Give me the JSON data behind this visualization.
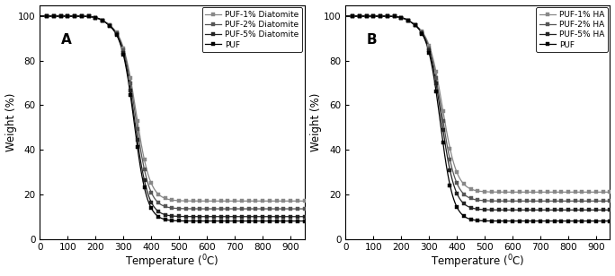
{
  "panel_a": {
    "label": "A",
    "ylabel": "Weight (%)",
    "xlim": [
      0,
      950
    ],
    "ylim": [
      0,
      105
    ],
    "xticks": [
      0,
      100,
      200,
      300,
      400,
      500,
      600,
      700,
      800,
      900
    ],
    "yticks": [
      0,
      20,
      40,
      60,
      80,
      100
    ],
    "series": [
      {
        "label": "PUF-1% Diatomite",
        "color": "#888888",
        "end_val": 17.0,
        "mid": 345,
        "steep": 0.04
      },
      {
        "label": "PUF-2% Diatomite",
        "color": "#555555",
        "end_val": 13.5,
        "mid": 343,
        "steep": 0.041
      },
      {
        "label": "PUF-5% Diatomite",
        "color": "#222222",
        "end_val": 10.0,
        "mid": 340,
        "steep": 0.042
      },
      {
        "label": "PUF",
        "color": "#000000",
        "end_val": 8.0,
        "mid": 338,
        "steep": 0.043
      }
    ]
  },
  "panel_b": {
    "label": "B",
    "ylabel": "Weight (%)",
    "xlim": [
      0,
      950
    ],
    "ylim": [
      0,
      105
    ],
    "xticks": [
      0,
      100,
      200,
      300,
      400,
      500,
      600,
      700,
      800,
      900
    ],
    "yticks": [
      0,
      20,
      40,
      60,
      80,
      100
    ],
    "series": [
      {
        "label": "PUF-1% HA",
        "color": "#888888",
        "end_val": 21.0,
        "mid": 348,
        "steep": 0.039
      },
      {
        "label": "PUF-2% HA",
        "color": "#555555",
        "end_val": 17.0,
        "mid": 345,
        "steep": 0.04
      },
      {
        "label": "PUF-5% HA",
        "color": "#222222",
        "end_val": 13.0,
        "mid": 343,
        "steep": 0.041
      },
      {
        "label": "PUF",
        "color": "#000000",
        "end_val": 8.0,
        "mid": 340,
        "steep": 0.043
      }
    ]
  },
  "marker": "s",
  "markersize": 2.8,
  "linewidth": 0.9,
  "background_color": "#ffffff",
  "legend_fontsize": 6.5,
  "axis_fontsize": 7.5,
  "label_fontsize": 8.5
}
